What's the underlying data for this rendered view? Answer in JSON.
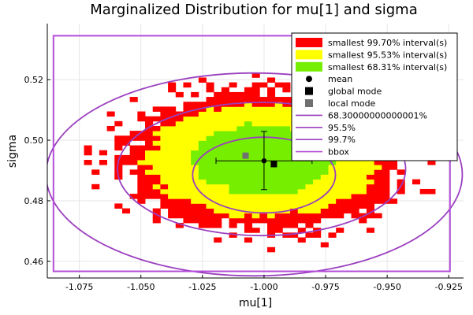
{
  "chart_data": {
    "type": "heatmap",
    "title": "Marginalized Distribution for mu[1] and sigma",
    "xlabel": "mu[1]",
    "ylabel": "sigma",
    "xlim": [
      -1.088,
      -0.919
    ],
    "ylim": [
      0.4545,
      0.5385
    ],
    "xticks": [
      -1.075,
      -1.05,
      -1.025,
      -1.0,
      -0.975,
      -0.95,
      -0.925
    ],
    "xtick_labels": [
      "-1.075",
      "-1.050",
      "-1.025",
      "-1.000",
      "-0.975",
      "-0.950",
      "-0.925"
    ],
    "yticks": [
      0.46,
      0.48,
      0.5,
      0.52
    ],
    "ytick_labels": [
      "0.46",
      "0.48",
      "0.50",
      "0.52"
    ],
    "grid": true,
    "legend_position": "top-right",
    "colors": {
      "i997": "#ff0000",
      "i955": "#ffff00",
      "i683": "#76ee00",
      "ellipse": "#9b3fbf",
      "bbox": "#b44dd9",
      "mean": "#000000",
      "global_mode": "#000000",
      "local_mode": "#707070"
    },
    "regions": {
      "center": [
        -1.0,
        0.4935
      ],
      "outer_radii": [
        0.0575,
        0.0237
      ],
      "middle_radii": [
        0.0475,
        0.0185
      ],
      "inner_radii": [
        0.028,
        0.0118
      ],
      "cell_size": [
        0.0031,
        0.0016
      ]
    },
    "mean": {
      "x": -1.0,
      "y": 0.4932,
      "xerr": 0.0195,
      "yerr_low": 0.0095,
      "yerr_high": 0.0097
    },
    "global_mode": {
      "x": -0.996,
      "y": 0.4921
    },
    "local_mode": {
      "x": -1.0075,
      "y": 0.4949
    },
    "ellipses": [
      {
        "name": "68.30000000000001%",
        "cx": -1.0,
        "cy": 0.4885,
        "rx": 0.029,
        "ry": 0.0125
      },
      {
        "name": "95.5%",
        "cx": -1.001,
        "cy": 0.4905,
        "rx": 0.0585,
        "ry": 0.022
      },
      {
        "name": "99.7%",
        "cx": -1.004,
        "cy": 0.4887,
        "rx": 0.0845,
        "ry": 0.0335
      }
    ],
    "bbox": {
      "xmin": -1.0855,
      "xmax": -0.9245,
      "ymin": 0.4567,
      "ymax": 0.5345
    },
    "legend": [
      {
        "label": "smallest 99.70% interval(s)",
        "kind": "box",
        "color": "#ff0000"
      },
      {
        "label": "smallest 95.53% interval(s)",
        "kind": "box",
        "color": "#ffff00"
      },
      {
        "label": "smallest 68.31% interval(s)",
        "kind": "box",
        "color": "#76ee00"
      },
      {
        "label": "mean",
        "kind": "circle",
        "color": "#000000"
      },
      {
        "label": "global mode",
        "kind": "square",
        "color": "#000000"
      },
      {
        "label": "local mode",
        "kind": "square",
        "color": "#707070"
      },
      {
        "label": "68.30000000000001%",
        "kind": "line",
        "color": "#9b3fbf"
      },
      {
        "label": "95.5%",
        "kind": "line",
        "color": "#9b3fbf"
      },
      {
        "label": "99.7%",
        "kind": "line",
        "color": "#9b3fbf"
      },
      {
        "label": "bbox",
        "kind": "line",
        "color": "#b44dd9"
      }
    ]
  }
}
